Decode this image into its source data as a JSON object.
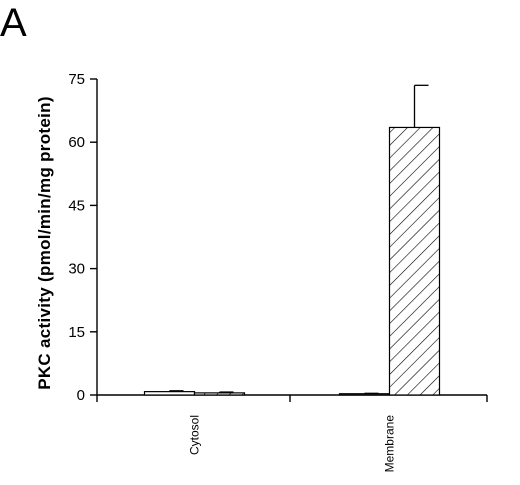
{
  "panel_label": "A",
  "chart_data": {
    "type": "bar",
    "title": "",
    "xlabel": "",
    "ylabel": "PKC activity (pmol/min/mg protein)",
    "ylim": [
      0,
      75
    ],
    "yticks": [
      0,
      15,
      30,
      45,
      60,
      75
    ],
    "categories": [
      "Cytosol",
      "Membrane"
    ],
    "series": [
      {
        "fill": "solid",
        "color": "#ffffff",
        "values": [
          0.8,
          0.3
        ],
        "errors": [
          0.2,
          0.1
        ]
      },
      {
        "fill": "hatched",
        "color": "#000000",
        "values": [
          0.5,
          63.5
        ],
        "errors": [
          0.2,
          10.0
        ]
      }
    ],
    "grid": false
  }
}
